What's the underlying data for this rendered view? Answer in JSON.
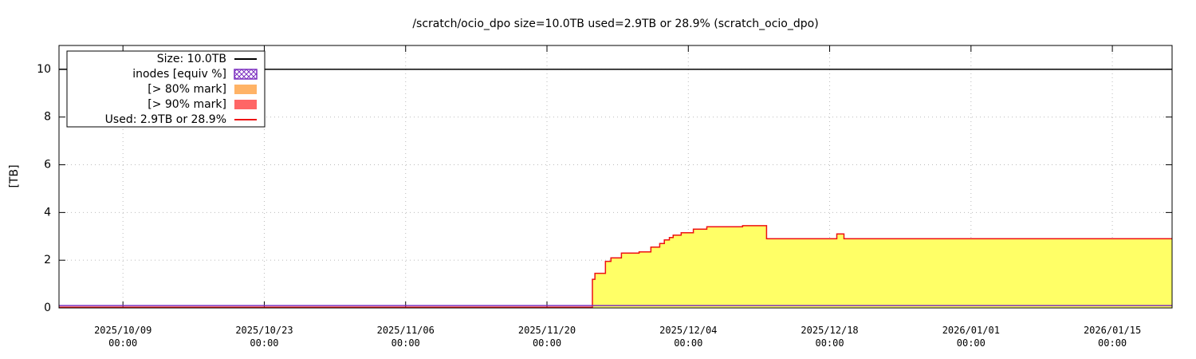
{
  "chart_data": {
    "type": "step-area",
    "title": "/scratch/ocio_dpo size=10.0TB used=2.9TB or 28.9% (scratch_ocio_dpo)",
    "ylabel": "[TB]",
    "xlim": [
      "2025-10-02T16:00",
      "2026-01-20T22:00"
    ],
    "ylim": [
      0,
      11
    ],
    "yticks": [
      0,
      2,
      4,
      6,
      8,
      10
    ],
    "xticks": [
      {
        "value": "2025-10-09T00:00",
        "label": "2025/10/09 00:00"
      },
      {
        "value": "2025-10-23T00:00",
        "label": "2025/10/23 00:00"
      },
      {
        "value": "2025-11-06T00:00",
        "label": "2025/11/06 00:00"
      },
      {
        "value": "2025-11-20T00:00",
        "label": "2025/11/20 00:00"
      },
      {
        "value": "2025-12-04T00:00",
        "label": "2025/12/04 00:00"
      },
      {
        "value": "2025-12-18T00:00",
        "label": "2025/12/18 00:00"
      },
      {
        "value": "2026-01-01T00:00",
        "label": "2026/01/01 00:00"
      },
      {
        "value": "2026-01-15T00:00",
        "label": "2026/01/15 00:00"
      }
    ],
    "grid": true,
    "legend": "top-left",
    "series": [
      {
        "name": "Size: 10.0TB",
        "style": "line",
        "color": "#000000",
        "x": [
          "2025-10-02T16:00",
          "2026-01-20T22:00"
        ],
        "values": [
          10,
          10
        ]
      },
      {
        "name": "inodes [equiv %]",
        "style": "hatch",
        "color": "#7b2fbf",
        "x": [
          "2025-10-02T16:00",
          "2026-01-20T22:00"
        ],
        "values": [
          0.1,
          0.1
        ]
      },
      {
        "name": "[> 80% mark]",
        "style": "area",
        "color": "#ffb366"
      },
      {
        "name": "[> 90% mark]",
        "style": "area",
        "color": "#ff6666"
      },
      {
        "name": "Used: 2.9TB or 28.9%",
        "style": "used",
        "color": "#ee1111",
        "fill": "#ffff66",
        "x": [
          "2025-10-02T16:00",
          "2025-11-24T12:00",
          "2025-11-24T18:00",
          "2025-11-25T19:00",
          "2025-11-26T08:00",
          "2025-11-27T09:00",
          "2025-11-29T03:00",
          "2025-11-30T07:00",
          "2025-12-01T04:00",
          "2025-12-01T15:00",
          "2025-12-02T03:00",
          "2025-12-02T12:00",
          "2025-12-03T07:00",
          "2025-12-04T12:00",
          "2025-12-05T20:00",
          "2025-12-09T09:00",
          "2025-12-11T18:00",
          "2025-12-18T17:00",
          "2025-12-19T10:00",
          "2026-01-20T22:00"
        ],
        "values": [
          0.03,
          1.2,
          1.45,
          1.95,
          2.1,
          2.3,
          2.35,
          2.55,
          2.7,
          2.85,
          2.95,
          3.05,
          3.15,
          3.3,
          3.4,
          3.45,
          2.9,
          3.1,
          2.9,
          2.9
        ]
      }
    ]
  }
}
